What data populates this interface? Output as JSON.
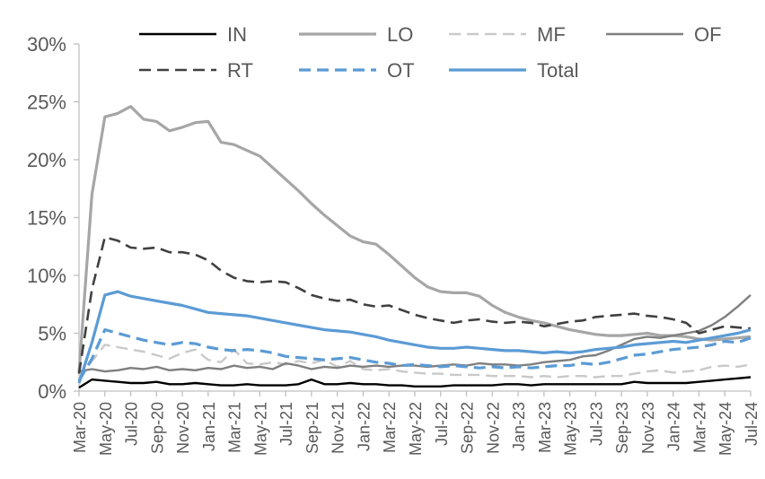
{
  "chart_data": {
    "type": "line",
    "title": "",
    "xlabel": "",
    "ylabel": "",
    "ylim": [
      0,
      30
    ],
    "yticks": [
      0,
      5,
      10,
      15,
      20,
      25,
      30
    ],
    "ytick_labels": [
      "0%",
      "5%",
      "10%",
      "15%",
      "20%",
      "25%",
      "30%"
    ],
    "x_tick_every": 2,
    "grid": "off",
    "legend_position": "top",
    "axis_color": "#c0c0c0",
    "label_color": "#595959",
    "categories": [
      "Mar-20",
      "Apr-20",
      "May-20",
      "Jun-20",
      "Jul-20",
      "Aug-20",
      "Sep-20",
      "Oct-20",
      "Nov-20",
      "Dec-20",
      "Jan-21",
      "Feb-21",
      "Mar-21",
      "Apr-21",
      "May-21",
      "Jun-21",
      "Jul-21",
      "Aug-21",
      "Sep-21",
      "Oct-21",
      "Nov-21",
      "Dec-21",
      "Jan-22",
      "Feb-22",
      "Mar-22",
      "Apr-22",
      "May-22",
      "Jun-22",
      "Jul-22",
      "Aug-22",
      "Sep-22",
      "Oct-22",
      "Nov-22",
      "Dec-22",
      "Jan-23",
      "Feb-23",
      "Mar-23",
      "Apr-23",
      "May-23",
      "Jun-23",
      "Jul-23",
      "Aug-23",
      "Sep-23",
      "Oct-23",
      "Nov-23",
      "Dec-23",
      "Jan-24",
      "Feb-24",
      "Mar-24",
      "Apr-24",
      "May-24",
      "Jun-24",
      "Jul-24"
    ],
    "series": [
      {
        "name": "LO",
        "color": "#a6a6a6",
        "dash": "solid",
        "width": 3.2,
        "values": [
          1.6,
          17,
          23.7,
          24,
          24.6,
          23.5,
          23.3,
          22.5,
          22.8,
          23.2,
          23.3,
          21.5,
          21.3,
          20.8,
          20.3,
          19.3,
          18.3,
          17.3,
          16.2,
          15.2,
          14.3,
          13.4,
          12.9,
          12.7,
          11.8,
          10.8,
          9.8,
          9,
          8.6,
          8.5,
          8.5,
          8.2,
          7.4,
          6.8,
          6.4,
          6.1,
          5.9,
          5.6,
          5.3,
          5.1,
          4.9,
          4.8,
          4.8,
          4.9,
          5,
          4.8,
          4.8,
          4.7,
          4.5,
          4.4,
          4.5,
          4.6,
          4.7
        ]
      },
      {
        "name": "MF",
        "color": "#c9c9c9",
        "dash": "dash",
        "width": 2.4,
        "values": [
          1.1,
          2.6,
          4,
          3.8,
          3.6,
          3.4,
          3.1,
          2.8,
          3.3,
          3.6,
          2.7,
          2.5,
          3.6,
          2.4,
          2.3,
          2.5,
          2.3,
          2.6,
          2.4,
          2.7,
          2.1,
          2.6,
          1.9,
          1.8,
          1.9,
          1.7,
          1.6,
          1.5,
          1.5,
          1.4,
          1.4,
          1.4,
          1.3,
          1.3,
          1.3,
          1.2,
          1.3,
          1.2,
          1.3,
          1.3,
          1.2,
          1.3,
          1.3,
          1.5,
          1.7,
          1.8,
          1.6,
          1.7,
          1.8,
          2.1,
          2.2,
          2.1,
          2.3
        ]
      },
      {
        "name": "OF",
        "color": "#7f7f7f",
        "dash": "solid",
        "width": 2.4,
        "values": [
          1.7,
          1.9,
          1.7,
          1.8,
          2,
          1.9,
          2.1,
          1.8,
          1.9,
          1.8,
          2,
          1.9,
          2.2,
          2,
          2.1,
          1.9,
          2.4,
          2.2,
          1.9,
          2.1,
          2,
          2.2,
          2.1,
          2.2,
          2.1,
          2.2,
          2.2,
          2.1,
          2.2,
          2.3,
          2.2,
          2.4,
          2.3,
          2.3,
          2.2,
          2.3,
          2.5,
          2.6,
          2.7,
          3,
          3.1,
          3.5,
          4,
          4.5,
          4.7,
          4.6,
          4.8,
          5,
          5.2,
          5.7,
          6.4,
          7.3,
          8.3
        ]
      },
      {
        "name": "RT",
        "color": "#404040",
        "dash": "dash",
        "width": 2.6,
        "values": [
          1.5,
          8.8,
          13.3,
          13,
          12.4,
          12.3,
          12.4,
          12,
          12,
          11.8,
          11.3,
          10.4,
          9.8,
          9.5,
          9.4,
          9.5,
          9.4,
          8.9,
          8.3,
          8,
          7.8,
          7.9,
          7.5,
          7.3,
          7.4,
          7,
          6.6,
          6.3,
          6.1,
          5.9,
          6.1,
          6.2,
          6,
          5.9,
          6,
          5.9,
          5.6,
          5.8,
          6,
          6.1,
          6.4,
          6.5,
          6.6,
          6.7,
          6.5,
          6.4,
          6.2,
          5.9,
          5,
          5.3,
          5.6,
          5.5,
          5.4
        ]
      },
      {
        "name": "IN",
        "color": "#000000",
        "dash": "solid",
        "width": 2.4,
        "values": [
          0.3,
          1,
          0.9,
          0.8,
          0.7,
          0.7,
          0.8,
          0.6,
          0.6,
          0.7,
          0.6,
          0.5,
          0.5,
          0.6,
          0.5,
          0.5,
          0.5,
          0.6,
          1,
          0.6,
          0.6,
          0.7,
          0.6,
          0.6,
          0.5,
          0.5,
          0.4,
          0.4,
          0.4,
          0.5,
          0.5,
          0.5,
          0.5,
          0.6,
          0.6,
          0.5,
          0.6,
          0.6,
          0.6,
          0.6,
          0.6,
          0.6,
          0.6,
          0.8,
          0.7,
          0.7,
          0.7,
          0.7,
          0.8,
          0.9,
          1,
          1.1,
          1.2
        ]
      },
      {
        "name": "OT",
        "color": "#5b9bd5",
        "dash": "dash",
        "width": 3.2,
        "values": [
          0.9,
          2.8,
          5.3,
          5,
          4.7,
          4.4,
          4.2,
          4,
          4.2,
          4.1,
          3.8,
          3.6,
          3.5,
          3.6,
          3.5,
          3.3,
          3,
          2.9,
          2.8,
          2.7,
          2.8,
          2.9,
          2.7,
          2.5,
          2.4,
          2.2,
          2.3,
          2.2,
          2.1,
          2.2,
          2.1,
          2,
          2.1,
          2,
          2.1,
          2,
          2.1,
          2.2,
          2.2,
          2.4,
          2.3,
          2.5,
          2.8,
          3.1,
          3.2,
          3.4,
          3.6,
          3.7,
          3.8,
          4,
          4.3,
          4.2,
          4.6
        ]
      },
      {
        "name": "Total",
        "color": "#5b9bd5",
        "dash": "solid",
        "width": 3.2,
        "values": [
          0.7,
          4.2,
          8.3,
          8.6,
          8.2,
          8,
          7.8,
          7.6,
          7.4,
          7.1,
          6.8,
          6.7,
          6.6,
          6.5,
          6.3,
          6.1,
          5.9,
          5.7,
          5.5,
          5.3,
          5.2,
          5.1,
          4.9,
          4.7,
          4.4,
          4.2,
          4,
          3.8,
          3.7,
          3.7,
          3.8,
          3.7,
          3.6,
          3.5,
          3.5,
          3.4,
          3.3,
          3.4,
          3.3,
          3.4,
          3.6,
          3.7,
          3.8,
          4,
          4.1,
          4.2,
          4.3,
          4.2,
          4.4,
          4.6,
          4.8,
          5,
          5.3
        ]
      }
    ],
    "legend_rows": [
      [
        "IN",
        "LO",
        "MF",
        "OF"
      ],
      [
        "RT",
        "OT",
        "Total"
      ]
    ]
  }
}
